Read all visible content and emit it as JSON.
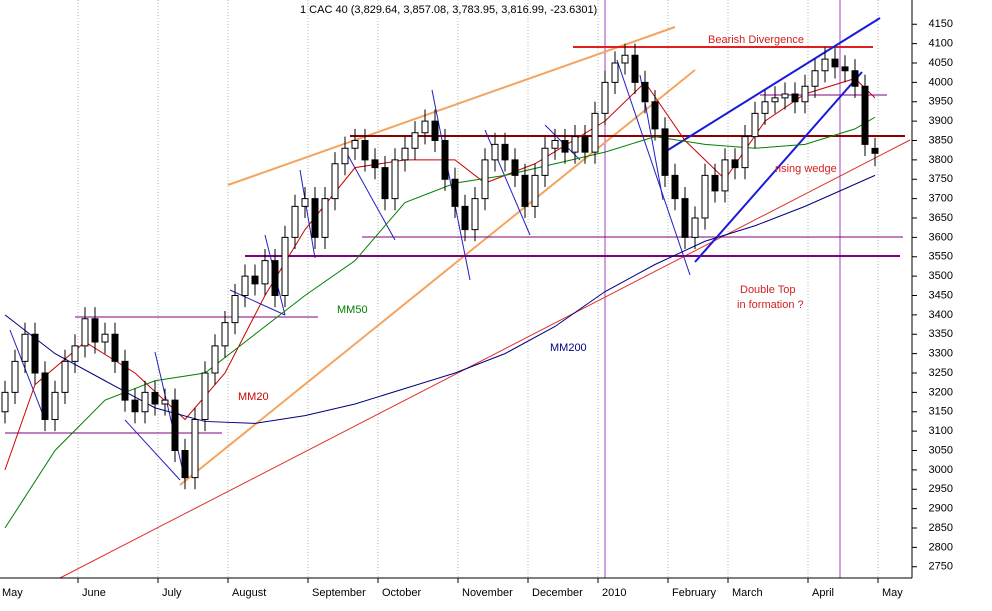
{
  "chart_data": {
    "type": "candlestick",
    "title": "1 CAC 40 (3,829.64, 3,857.08, 3,783.95, 3,816.99, -23.6301)",
    "categories": [
      "May",
      null,
      null,
      null,
      null,
      null,
      null,
      null,
      "June",
      null,
      null,
      null,
      null,
      null,
      null,
      null,
      "July",
      null,
      null,
      null,
      null,
      null,
      null,
      "August",
      null,
      null,
      null,
      null,
      null,
      null,
      null,
      "September",
      null,
      null,
      null,
      null,
      null,
      null,
      "October",
      null,
      null,
      null,
      null,
      null,
      null,
      null,
      "November",
      null,
      null,
      null,
      null,
      null,
      null,
      "December",
      null,
      null,
      null,
      null,
      null,
      null,
      "2010",
      null,
      null,
      null,
      null,
      null,
      null,
      "February",
      null,
      null,
      null,
      null,
      null,
      "March",
      null,
      null,
      null,
      null,
      null,
      null,
      null,
      "April",
      null,
      null,
      null,
      null,
      null,
      null,
      "May"
    ],
    "open": [
      3150,
      3200,
      3280,
      3350,
      3250,
      3130,
      3200,
      3280,
      3320,
      3390,
      3330,
      3350,
      3280,
      3180,
      3150,
      3200,
      3170,
      3180,
      3050,
      2980,
      3130,
      3250,
      3320,
      3380,
      3450,
      3500,
      3480,
      3540,
      3450,
      3600,
      3680,
      3700,
      3600,
      3700,
      3790,
      3830,
      3850,
      3800,
      3780,
      3700,
      3800,
      3830,
      3870,
      3900,
      3850,
      3750,
      3680,
      3620,
      3700,
      3800,
      3840,
      3800,
      3760,
      3680,
      3760,
      3830,
      3850,
      3820,
      3860,
      3820,
      3920,
      4000,
      4050,
      4070,
      4000,
      3950,
      3880,
      3760,
      3700,
      3600,
      3650,
      3760,
      3720,
      3800,
      3780,
      3860,
      3920,
      3950,
      3960,
      3970,
      3950,
      3990,
      4030,
      4060,
      4040,
      4030,
      3990,
      3829.64,
      null
    ],
    "high": [
      3230,
      3310,
      3380,
      3380,
      3280,
      3230,
      3310,
      3350,
      3420,
      3420,
      3380,
      3380,
      3310,
      3210,
      3230,
      3230,
      3210,
      3210,
      3080,
      3160,
      3280,
      3350,
      3410,
      3480,
      3530,
      3530,
      3570,
      3570,
      3630,
      3710,
      3730,
      3730,
      3730,
      3820,
      3860,
      3880,
      3880,
      3830,
      3810,
      3830,
      3860,
      3900,
      3930,
      3930,
      3880,
      3780,
      3710,
      3730,
      3830,
      3870,
      3870,
      3830,
      3790,
      3790,
      3860,
      3880,
      3880,
      3890,
      3890,
      3950,
      4030,
      4080,
      4100,
      4100,
      4030,
      3980,
      3910,
      3790,
      3730,
      3680,
      3790,
      3790,
      3830,
      3830,
      3890,
      3950,
      3980,
      3990,
      4000,
      4000,
      4020,
      4060,
      4090,
      4090,
      4070,
      4060,
      4020,
      3857.08,
      null
    ],
    "low": [
      3120,
      3170,
      3250,
      3220,
      3100,
      3100,
      3170,
      3250,
      3290,
      3300,
      3300,
      3250,
      3150,
      3120,
      3120,
      3140,
      3140,
      3020,
      2950,
      2950,
      3100,
      3220,
      3290,
      3350,
      3420,
      3450,
      3450,
      3420,
      3420,
      3570,
      3650,
      3570,
      3570,
      3670,
      3760,
      3800,
      3770,
      3750,
      3670,
      3670,
      3770,
      3800,
      3840,
      3820,
      3720,
      3650,
      3590,
      3590,
      3670,
      3770,
      3770,
      3730,
      3650,
      3650,
      3730,
      3800,
      3790,
      3790,
      3790,
      3790,
      3890,
      3970,
      4020,
      3970,
      3920,
      3850,
      3730,
      3670,
      3570,
      3570,
      3620,
      3690,
      3690,
      3750,
      3750,
      3830,
      3890,
      3920,
      3930,
      3920,
      3920,
      3960,
      4000,
      4010,
      4000,
      3960,
      3810,
      3783.95,
      null
    ],
    "close": [
      3200,
      3280,
      3350,
      3250,
      3130,
      3200,
      3280,
      3320,
      3390,
      3330,
      3350,
      3280,
      3180,
      3150,
      3200,
      3170,
      3180,
      3050,
      2980,
      3130,
      3250,
      3320,
      3380,
      3450,
      3500,
      3480,
      3540,
      3450,
      3600,
      3680,
      3700,
      3600,
      3700,
      3790,
      3830,
      3850,
      3800,
      3780,
      3700,
      3800,
      3830,
      3870,
      3900,
      3850,
      3750,
      3680,
      3620,
      3700,
      3800,
      3840,
      3800,
      3760,
      3680,
      3760,
      3830,
      3850,
      3820,
      3860,
      3820,
      3920,
      4000,
      4050,
      4070,
      4000,
      3950,
      3880,
      3760,
      3700,
      3600,
      3650,
      3760,
      3720,
      3800,
      3780,
      3860,
      3920,
      3950,
      3960,
      3970,
      3950,
      3990,
      4030,
      4060,
      4040,
      4030,
      3990,
      3840,
      3816.99,
      null
    ],
    "ylim": [
      2690,
      4210
    ],
    "yticks": [
      2750,
      2800,
      2850,
      2900,
      2950,
      3000,
      3050,
      3100,
      3150,
      3200,
      3250,
      3300,
      3350,
      3400,
      3450,
      3500,
      3550,
      3600,
      3650,
      3700,
      3750,
      3800,
      3850,
      3900,
      3950,
      4000,
      4050,
      4100,
      4150
    ],
    "indicators": [
      {
        "name": "MM20",
        "color": "#cc0000",
        "x": [
          0,
          3,
          8,
          13,
          18,
          22,
          26,
          30,
          35,
          40,
          45,
          48,
          53,
          60,
          64,
          68,
          72,
          76,
          80,
          85,
          87
        ],
        "values": [
          3000,
          3220,
          3330,
          3250,
          3130,
          3250,
          3450,
          3620,
          3780,
          3800,
          3800,
          3740,
          3790,
          3900,
          4000,
          3850,
          3750,
          3900,
          3970,
          4010,
          3960
        ]
      },
      {
        "name": "MM50",
        "color": "#008000",
        "x": [
          0,
          5,
          10,
          15,
          20,
          25,
          30,
          35,
          40,
          45,
          50,
          55,
          60,
          65,
          70,
          75,
          80,
          85,
          87
        ],
        "values": [
          2850,
          3050,
          3180,
          3230,
          3250,
          3350,
          3450,
          3540,
          3690,
          3740,
          3760,
          3790,
          3820,
          3860,
          3840,
          3830,
          3840,
          3880,
          3910
        ]
      },
      {
        "name": "MM200",
        "color": "#000080",
        "x": [
          0,
          5,
          10,
          15,
          20,
          25,
          30,
          35,
          40,
          45,
          50,
          55,
          60,
          65,
          70,
          75,
          80,
          87
        ],
        "values": [
          3400,
          3300,
          3230,
          3160,
          3125,
          3120,
          3140,
          3170,
          3210,
          3250,
          3300,
          3370,
          3460,
          3530,
          3590,
          3630,
          3680,
          3760
        ]
      }
    ],
    "annotations": [
      "Bearish Divergence",
      "rising wedge",
      "Double Top",
      "in formation ?"
    ]
  }
}
